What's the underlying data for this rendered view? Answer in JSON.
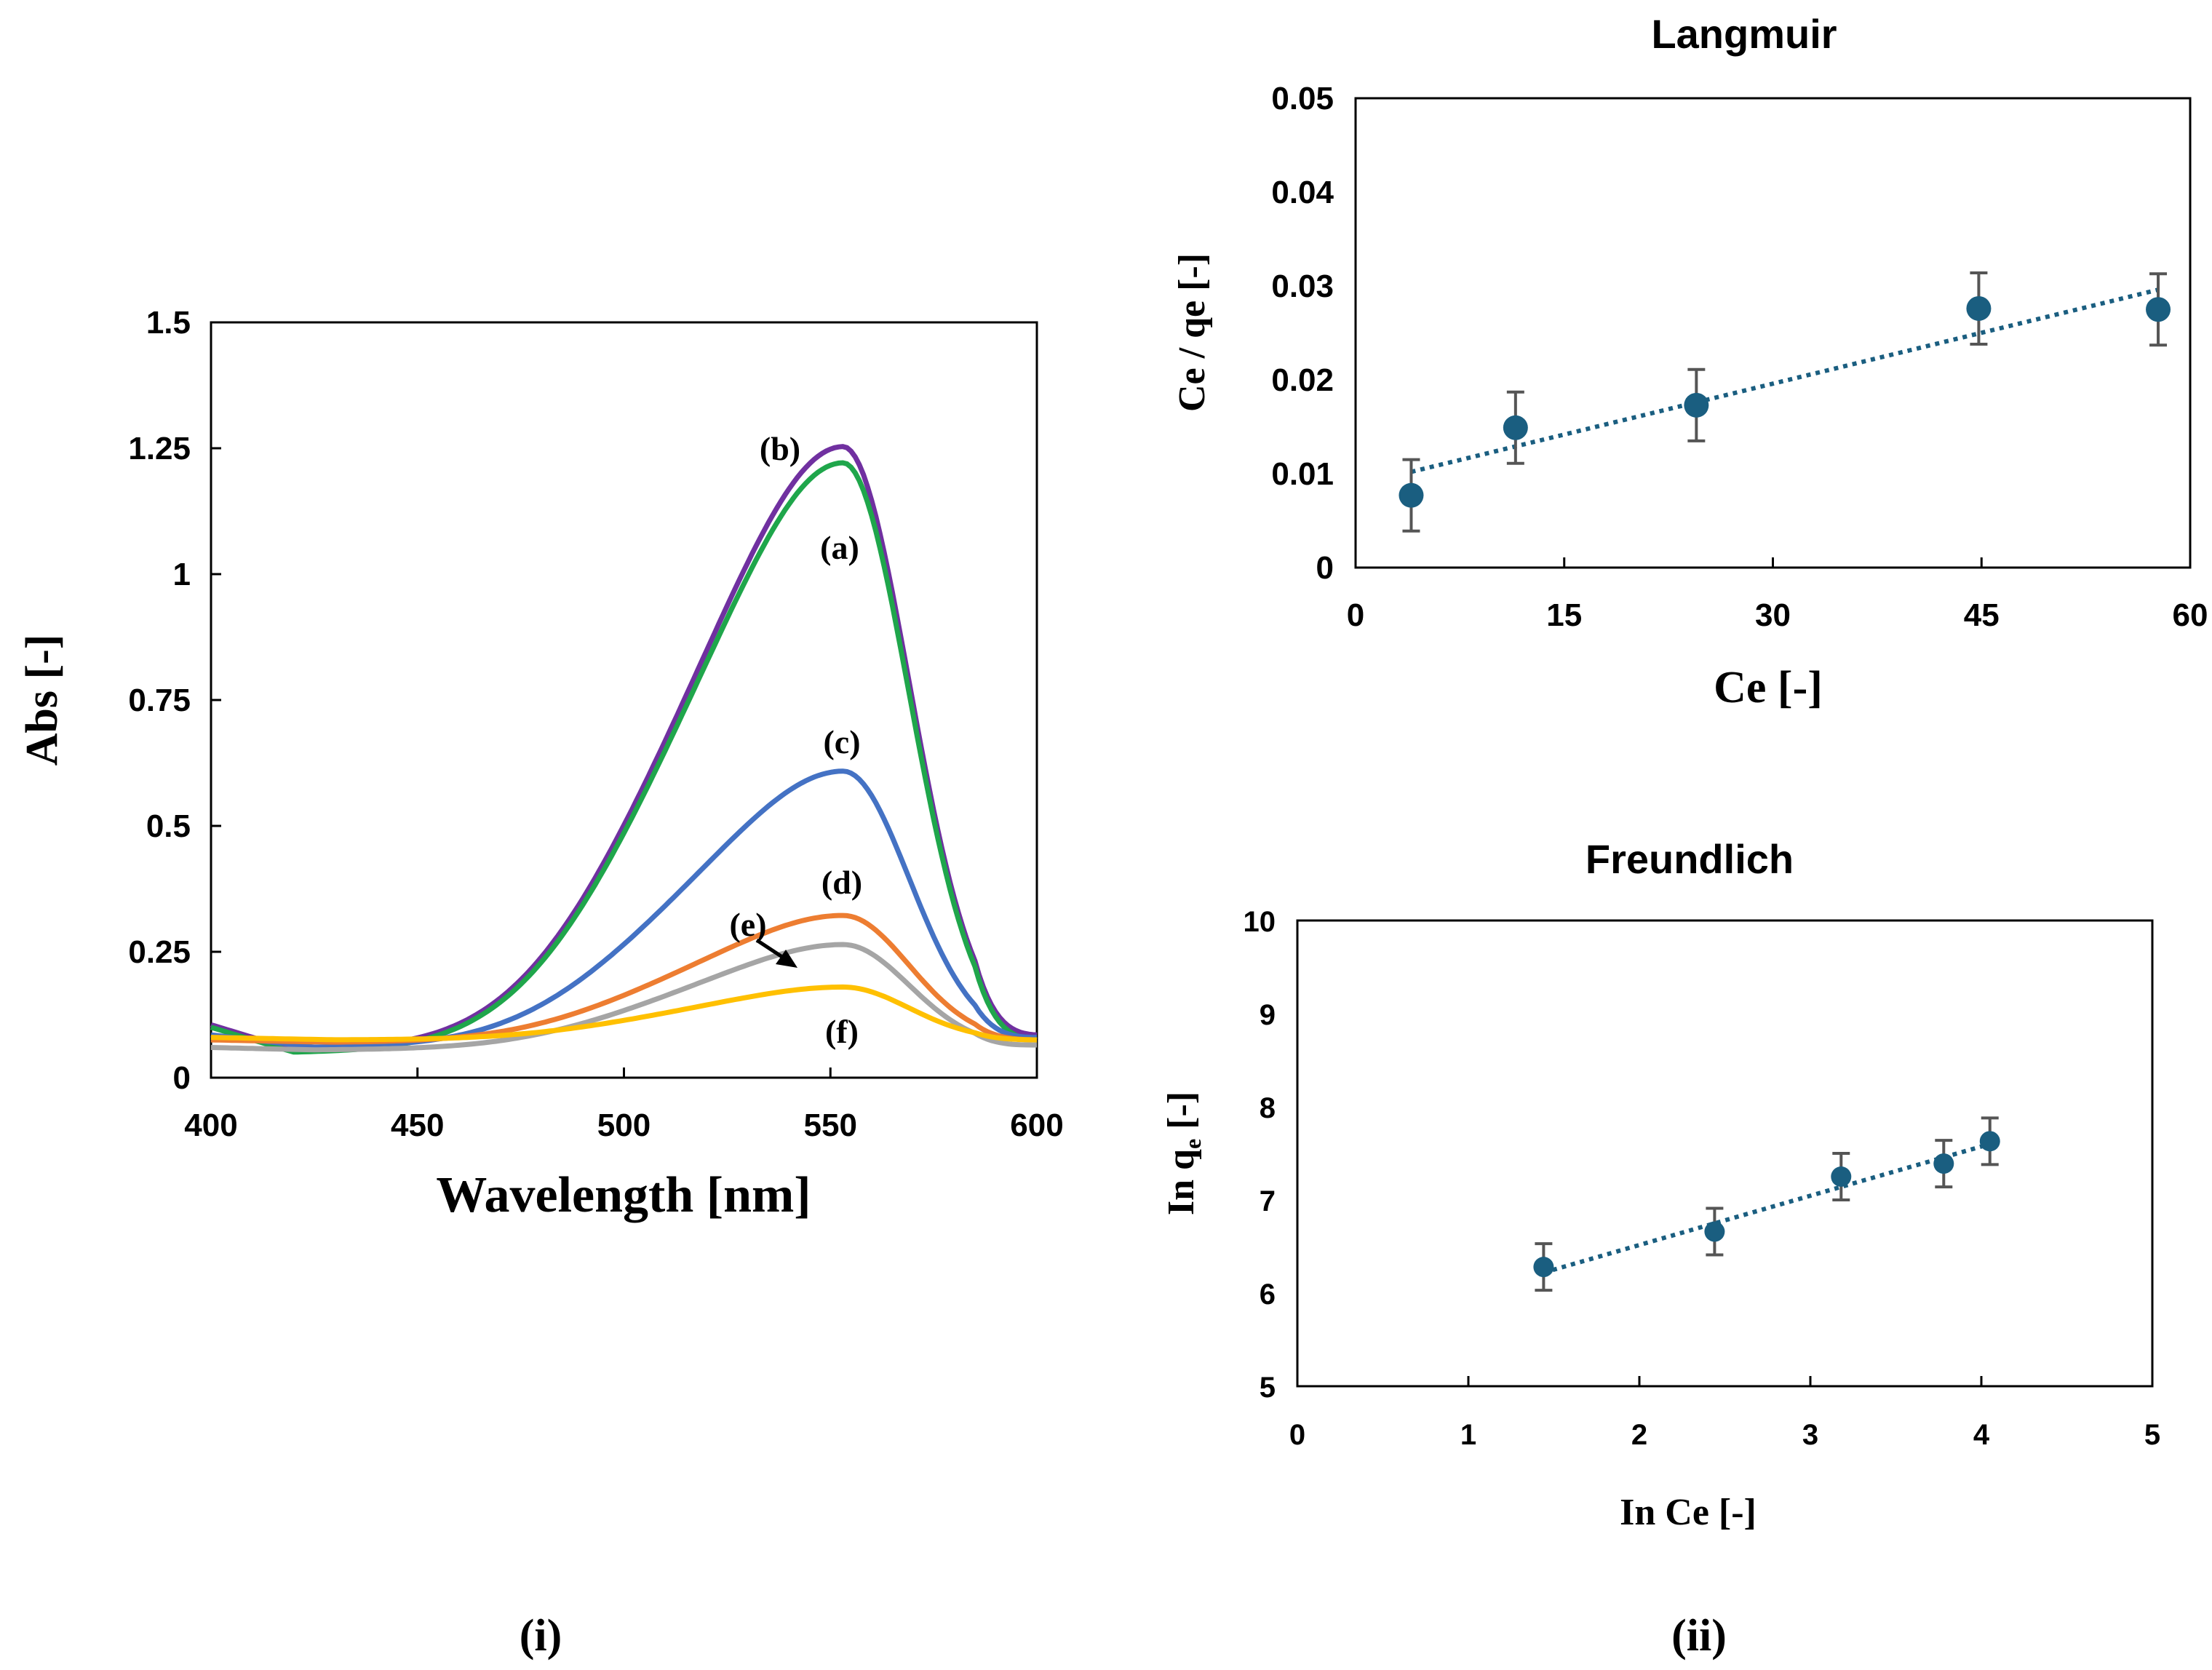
{
  "figure": {
    "panel_labels": [
      "(i)",
      "(ii)"
    ]
  },
  "chart_data": [
    {
      "id": "spectra",
      "type": "line",
      "title": "",
      "xlabel": "Wavelength [nm]",
      "ylabel": "Abs [-]",
      "xlim": [
        400,
        600
      ],
      "ylim": [
        0,
        1.5
      ],
      "xticks": [
        "400",
        "450",
        "500",
        "550",
        "600"
      ],
      "yticks": [
        "0",
        "0.25",
        "0.5",
        "0.75",
        "1",
        "1.25",
        "1.5"
      ],
      "series": [
        {
          "name": "(b)",
          "label": "(b)",
          "color": "#7030A0",
          "peak": 1.24,
          "base_left": 0.105,
          "min": 0.055,
          "min_x": 420,
          "right": 0.085
        },
        {
          "name": "(a)",
          "label": "(a)",
          "color": "#1FA64B",
          "peak": 1.21,
          "base_left": 0.1,
          "min": 0.05,
          "min_x": 420,
          "right": 0.075
        },
        {
          "name": "(c)",
          "label": "(c)",
          "color": "#4472C4",
          "peak": 0.6,
          "base_left": 0.085,
          "min": 0.06,
          "min_x": 425,
          "right": 0.08
        },
        {
          "name": "(d)",
          "label": "(d)",
          "color": "#ED7D31",
          "peak": 0.32,
          "base_left": 0.075,
          "min": 0.07,
          "min_x": 430,
          "right": 0.075
        },
        {
          "name": "(e)",
          "label": "(e)",
          "color": "#A5A5A5",
          "peak": 0.26,
          "base_left": 0.06,
          "min": 0.055,
          "min_x": 425,
          "right": 0.065
        },
        {
          "name": "(f)",
          "label": "(f)",
          "color": "#FFC000",
          "peak": 0.18,
          "base_left": 0.08,
          "min": 0.075,
          "min_x": 430,
          "right": 0.075
        }
      ],
      "peak_x": 553
    },
    {
      "id": "langmuir",
      "type": "scatter",
      "title": "Langmuir",
      "xlabel": "Ce [-]",
      "ylabel": "Ce / qe [-]",
      "xlim": [
        0,
        60
      ],
      "ylim": [
        0,
        0.05
      ],
      "xticks": [
        "0",
        "15",
        "30",
        "45",
        "60"
      ],
      "yticks": [
        "0",
        "0.01",
        "0.02",
        "0.03",
        "0.04",
        "0.05"
      ],
      "color": "#1A5E80",
      "points": [
        {
          "x": 4.0,
          "y": 0.0077,
          "err": 0.0038
        },
        {
          "x": 11.5,
          "y": 0.0149,
          "err": 0.0038
        },
        {
          "x": 24.5,
          "y": 0.0173,
          "err": 0.0038
        },
        {
          "x": 44.8,
          "y": 0.0276,
          "err": 0.0038
        },
        {
          "x": 57.7,
          "y": 0.0275,
          "err": 0.0038
        }
      ],
      "trendline": {
        "x1": 4.0,
        "y1": 0.0102,
        "x2": 57.7,
        "y2": 0.0296
      }
    },
    {
      "id": "freundlich",
      "type": "scatter",
      "title": "Freundlich",
      "xlabel": "In Ce [-]",
      "ylabel": "In q",
      "ylabel_sub": "e",
      "ylabel_suffix": " [-]",
      "xlim": [
        0,
        5
      ],
      "ylim": [
        5,
        10
      ],
      "xticks": [
        "0",
        "1",
        "2",
        "3",
        "4",
        "5"
      ],
      "yticks": [
        "5",
        "6",
        "7",
        "8",
        "9",
        "10"
      ],
      "color": "#1A5E80",
      "points": [
        {
          "x": 1.44,
          "y": 6.28,
          "err": 0.25
        },
        {
          "x": 2.44,
          "y": 6.66,
          "err": 0.25
        },
        {
          "x": 3.18,
          "y": 7.25,
          "err": 0.25
        },
        {
          "x": 3.78,
          "y": 7.39,
          "err": 0.25
        },
        {
          "x": 4.05,
          "y": 7.63,
          "err": 0.25
        }
      ],
      "trendline": {
        "x1": 1.44,
        "y1": 6.22,
        "x2": 4.05,
        "y2": 7.6
      }
    }
  ]
}
